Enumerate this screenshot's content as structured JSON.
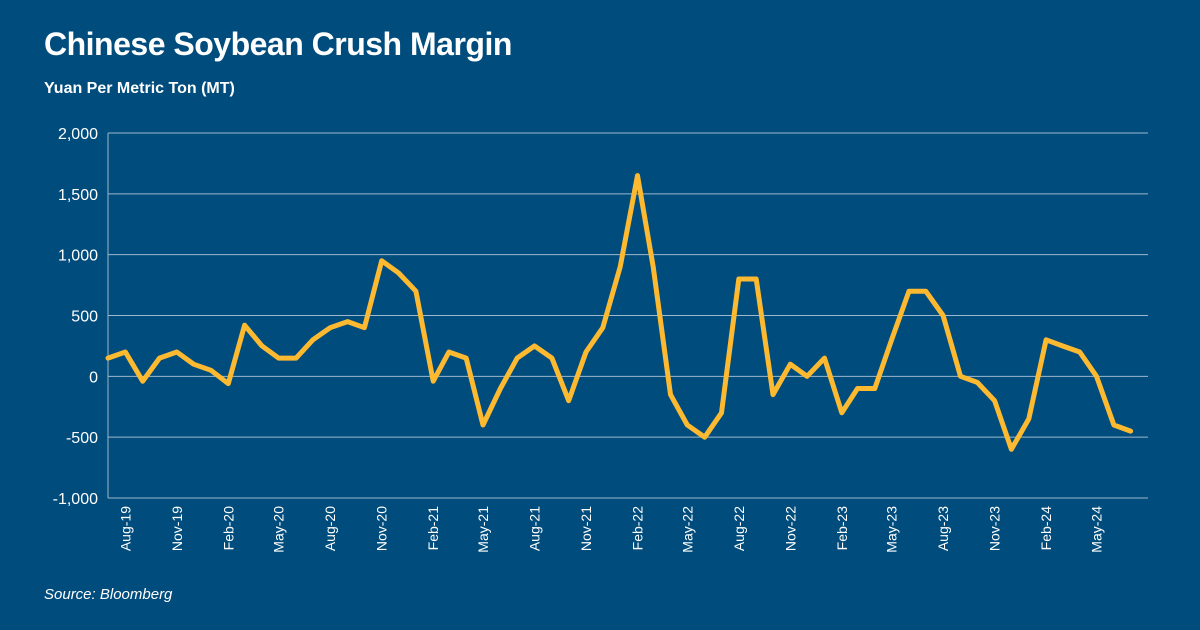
{
  "title": "Chinese Soybean Crush Margin",
  "subtitle": "Yuan Per Metric Ton (MT)",
  "source": "Source: Bloomberg",
  "colors": {
    "background": "#004c7d",
    "line": "#fdb930",
    "grid": "#9db8cc",
    "text": "#ffffff"
  },
  "chart_data": {
    "type": "line",
    "title": "Chinese Soybean Crush Margin",
    "ylabel": "Yuan Per Metric Ton (MT)",
    "xlabel": "",
    "ylim": [
      -1000,
      2000
    ],
    "y_ticks": [
      -1000,
      -500,
      0,
      500,
      1000,
      1500,
      2000
    ],
    "y_tick_labels": [
      "-1,000",
      "-500",
      "0",
      "500",
      "1,000",
      "1,500",
      "2,000"
    ],
    "x_tick_labels": [
      "Aug-19",
      "Nov-19",
      "Feb-20",
      "May-20",
      "Aug-20",
      "Nov-20",
      "Feb-21",
      "May-21",
      "Aug-21",
      "Nov-21",
      "Feb-22",
      "May-22",
      "Aug-22",
      "Nov-22",
      "Feb-23",
      "May-23",
      "Aug-23",
      "Nov-23",
      "Feb-24",
      "May-24"
    ],
    "grid": true,
    "series": [
      {
        "x": [
          "2019-07",
          "2019-08",
          "2019-09",
          "2019-10",
          "2019-11",
          "2019-12",
          "2020-01",
          "2020-02",
          "2020-03",
          "2020-04",
          "2020-05",
          "2020-06",
          "2020-07",
          "2020-08",
          "2020-09",
          "2020-10",
          "2020-11",
          "2020-12",
          "2021-01",
          "2021-02",
          "2021-03",
          "2021-04",
          "2021-05",
          "2021-06",
          "2021-07",
          "2021-08",
          "2021-09",
          "2021-10",
          "2021-11",
          "2021-12",
          "2022-01",
          "2022-02",
          "2022-03",
          "2022-04",
          "2022-05",
          "2022-06",
          "2022-07",
          "2022-08",
          "2022-09",
          "2022-10",
          "2022-11",
          "2022-12",
          "2023-01",
          "2023-02",
          "2023-03",
          "2023-04",
          "2023-05",
          "2023-06",
          "2023-07",
          "2023-08",
          "2023-09",
          "2023-10",
          "2023-11",
          "2023-12",
          "2024-01",
          "2024-02",
          "2024-03",
          "2024-04",
          "2024-05",
          "2024-06",
          "2024-07"
        ],
        "values": [
          150,
          200,
          -40,
          150,
          200,
          100,
          50,
          -60,
          420,
          250,
          150,
          150,
          300,
          400,
          450,
          400,
          950,
          850,
          700,
          -40,
          200,
          150,
          -400,
          -100,
          150,
          250,
          150,
          -200,
          200,
          400,
          900,
          1650,
          900,
          -150,
          -400,
          -500,
          -300,
          800,
          800,
          -150,
          100,
          0,
          150,
          -300,
          -100,
          -100,
          300,
          700,
          700,
          500,
          0,
          -50,
          -200,
          -600,
          -350,
          300,
          250,
          200,
          0,
          -400,
          -450
        ]
      }
    ]
  }
}
